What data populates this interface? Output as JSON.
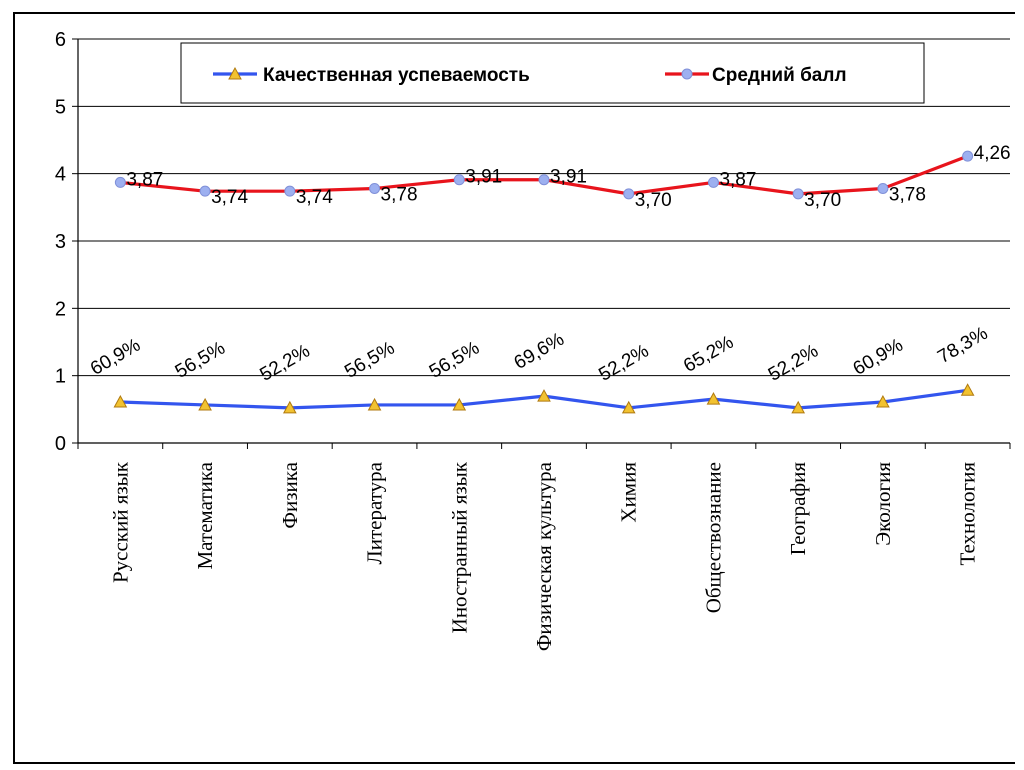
{
  "chart_data": {
    "type": "line",
    "categories": [
      "Русский язык",
      "Математика",
      "Физика",
      "Литература",
      "Иностранный язык",
      "Физическая культура",
      "Химия",
      "Обществознание",
      "География",
      "Экология",
      "Технология"
    ],
    "ylim": [
      0,
      6
    ],
    "yticks": [
      "0",
      "1",
      "2",
      "3",
      "4",
      "5",
      "6"
    ],
    "grid": true,
    "legend_position": "top",
    "series": [
      {
        "name": "Качественная успеваемость",
        "color": "#3355ee",
        "marker": "triangle",
        "marker_color": "#f2c230",
        "values": [
          0.609,
          0.565,
          0.522,
          0.565,
          0.565,
          0.696,
          0.522,
          0.652,
          0.522,
          0.609,
          0.783
        ],
        "labels": [
          "60,9%",
          "56,5%",
          "52,2%",
          "56,5%",
          "56,5%",
          "69,6%",
          "52,2%",
          "65,2%",
          "52,2%",
          "60,9%",
          "78,3%"
        ]
      },
      {
        "name": "Средний балл",
        "color": "#e8141c",
        "marker": "circle",
        "marker_color": "#9db0f0",
        "values": [
          3.87,
          3.74,
          3.74,
          3.78,
          3.91,
          3.91,
          3.7,
          3.87,
          3.7,
          3.78,
          4.26
        ],
        "labels": [
          "3,87",
          "3,74",
          "3,74",
          "3,78",
          "3,91",
          "3,91",
          "3,70",
          "3,87",
          "3,70",
          "3,78",
          "4,26"
        ]
      }
    ]
  }
}
